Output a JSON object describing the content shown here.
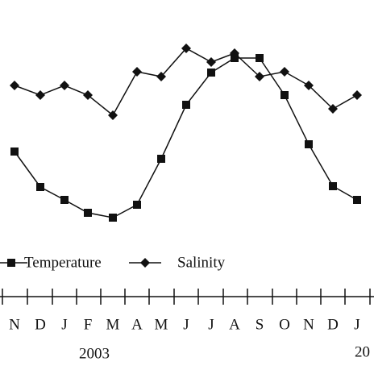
{
  "chart_data": {
    "type": "line",
    "categories": [
      "N",
      "D",
      "J",
      "F",
      "M",
      "A",
      "M",
      "J",
      "J",
      "A",
      "S",
      "O",
      "N",
      "D",
      "J"
    ],
    "years": [
      "2003",
      "20"
    ],
    "series": [
      {
        "name": "Temperature",
        "color": "#111111",
        "marker": "square",
        "values": [
          112,
          68,
          52,
          36,
          30,
          46,
          103,
          170,
          210,
          228,
          228,
          182,
          121,
          69,
          52
        ]
      },
      {
        "name": "Salinity",
        "color": "#111111",
        "marker": "diamond",
        "values": [
          194,
          182,
          194,
          182,
          157,
          211,
          205,
          240,
          223,
          234,
          205,
          211,
          194,
          165,
          182
        ]
      }
    ],
    "ylim": [
      0,
      300
    ]
  }
}
